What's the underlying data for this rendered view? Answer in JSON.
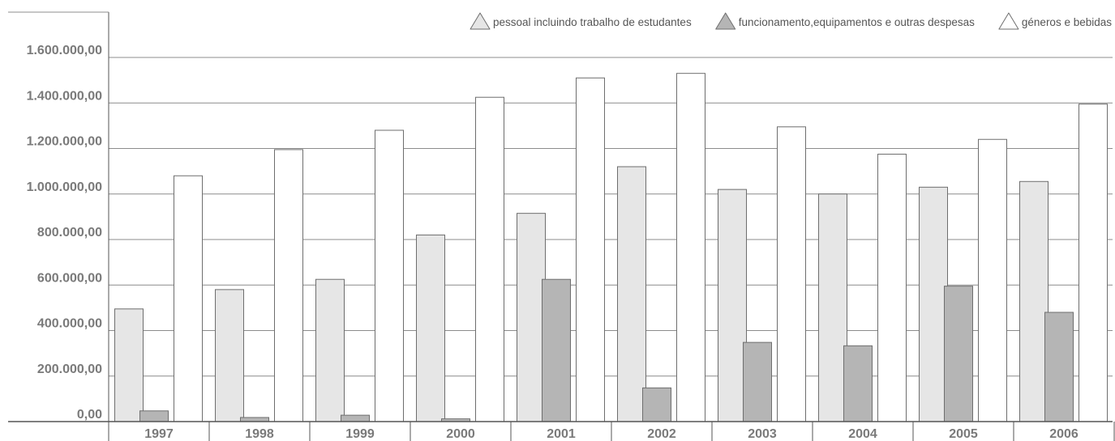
{
  "chart_data": {
    "type": "bar",
    "categories": [
      "1997",
      "1998",
      "1999",
      "2000",
      "2001",
      "2002",
      "2003",
      "2004",
      "2005",
      "2006"
    ],
    "series": [
      {
        "name": "pessoal incluindo trabalho de estudantes",
        "color": "#e6e6e6",
        "values": [
          495000,
          580000,
          625000,
          820000,
          915000,
          1120000,
          1020000,
          1000000,
          1030000,
          1055000
        ]
      },
      {
        "name": "funcionamento,equipamentos e outras despesas",
        "color": "#b5b5b5",
        "values": [
          47000,
          18000,
          28000,
          12000,
          625000,
          148000,
          348000,
          333000,
          595000,
          480000
        ]
      },
      {
        "name": "géneros e bebidas",
        "color": "#ffffff",
        "values": [
          1080000,
          1195000,
          1280000,
          1425000,
          1510000,
          1530000,
          1295000,
          1175000,
          1240000,
          1395000
        ]
      }
    ],
    "yticks": [
      "0,00",
      "200.000,00",
      "400.000,00",
      "600.000,00",
      "800.000,00",
      "1.000.000,00",
      "1.200.000,00",
      "1.400.000,00",
      "1.600.000,00"
    ],
    "ylim": [
      0,
      1600000
    ],
    "grid": true,
    "legend": "top-right",
    "title": "",
    "xlabel": "",
    "ylabel": ""
  }
}
